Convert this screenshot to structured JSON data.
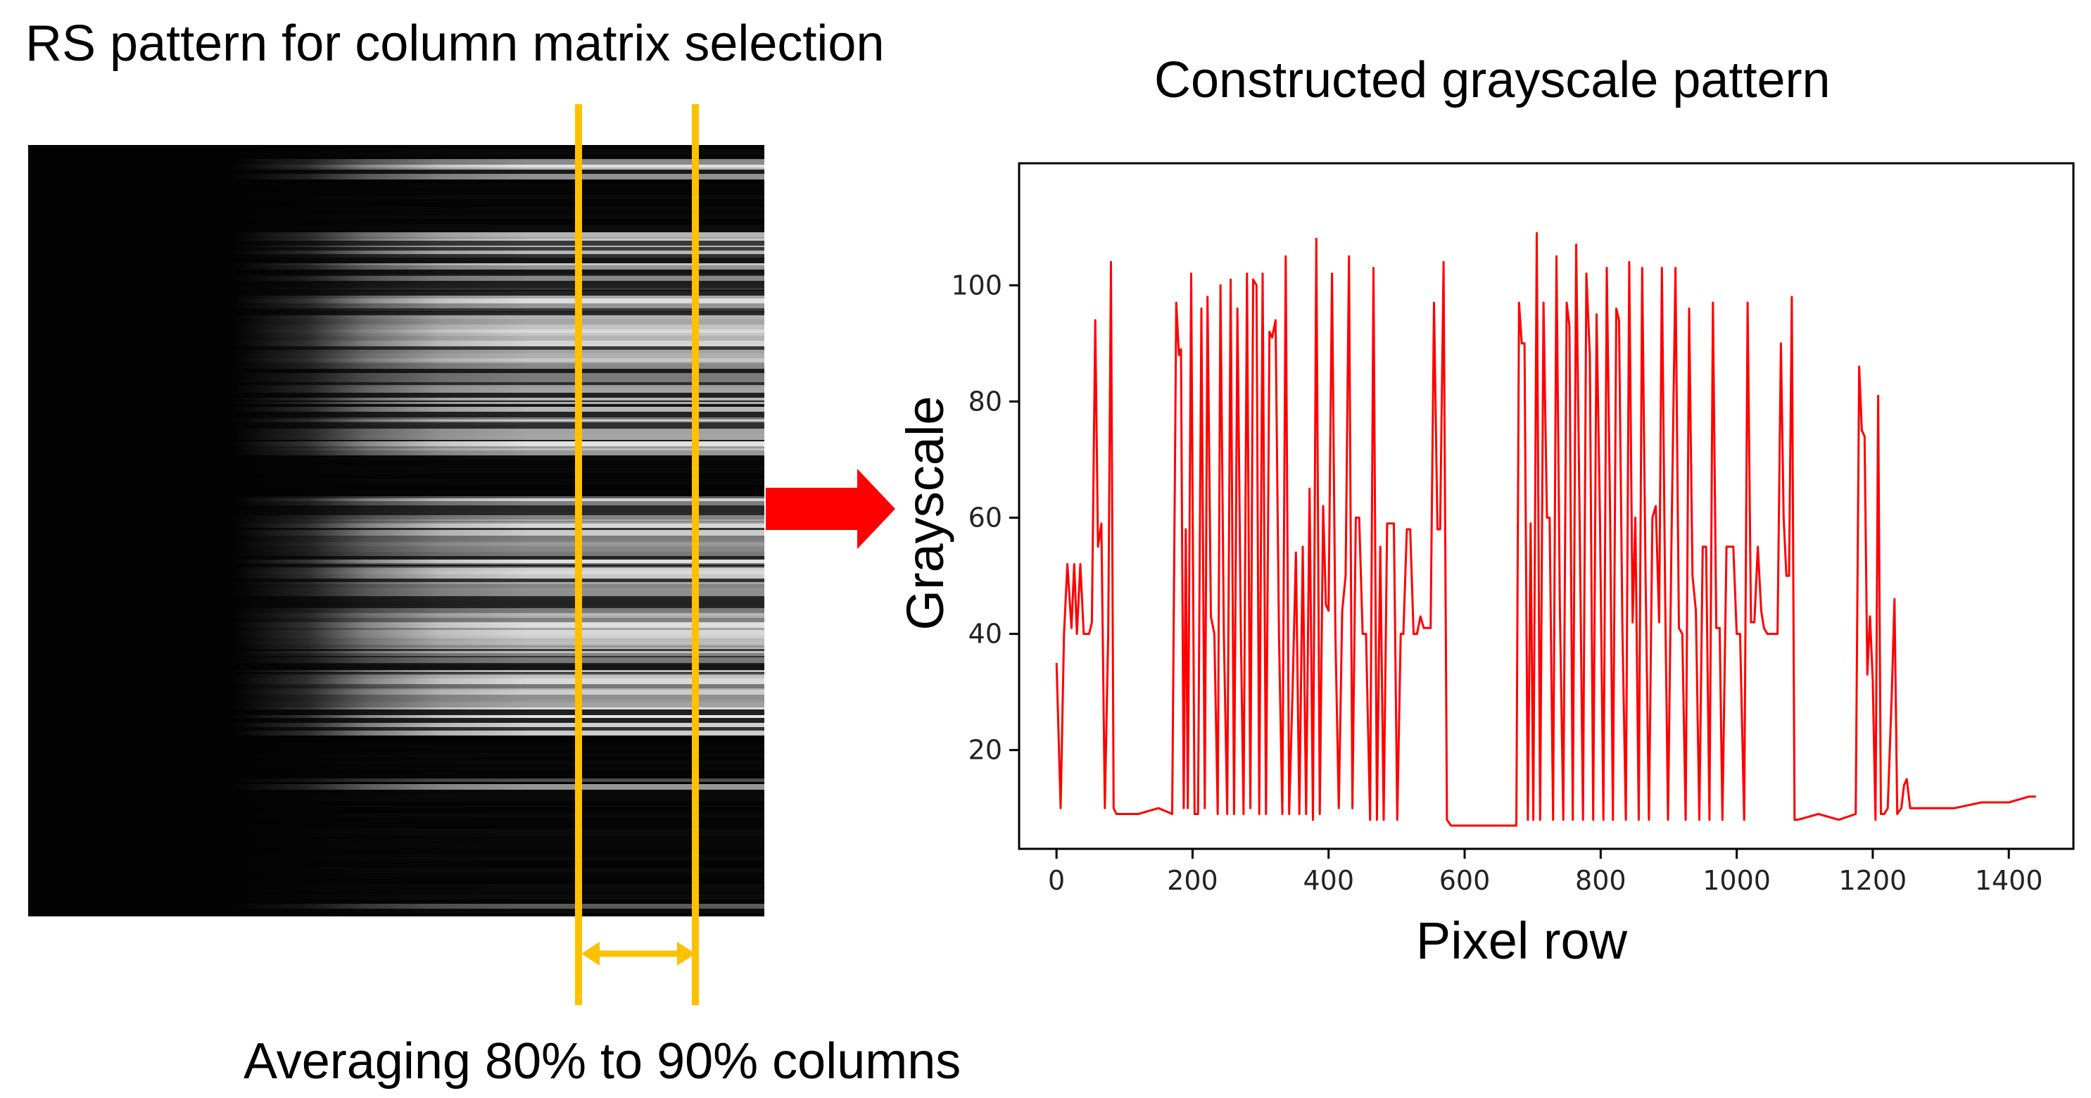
{
  "left_panel": {
    "title": "RS pattern for column matrix selection",
    "caption": "Averaging 80% to 90% columns",
    "selection_range_percent": [
      80,
      90
    ]
  },
  "colors": {
    "signal_line": "#ff0000",
    "selection_marker": "#ffc000",
    "arrow": "#ff0000",
    "rs_background": "#030303"
  },
  "icons": {
    "arrow": "right-arrow-icon",
    "range": "double-headed-arrow-icon"
  },
  "chart_data": {
    "type": "line",
    "title": "Constructed grayscale pattern",
    "xlabel": "Pixel row",
    "ylabel": "Grayscale",
    "xlim": [
      -55,
      1495
    ],
    "ylim": [
      3,
      121
    ],
    "xticks": [
      0,
      200,
      400,
      600,
      800,
      1000,
      1200,
      1400
    ],
    "yticks": [
      20,
      40,
      60,
      80,
      100
    ],
    "grid": false,
    "legend": "none",
    "series": [
      {
        "name": "grayscale",
        "color": "#ff0000",
        "points": [
          [
            0,
            35
          ],
          [
            6,
            10
          ],
          [
            11,
            40
          ],
          [
            16,
            52
          ],
          [
            22,
            41
          ],
          [
            26,
            52
          ],
          [
            30,
            40
          ],
          [
            35,
            52
          ],
          [
            40,
            40
          ],
          [
            48,
            40
          ],
          [
            52,
            42
          ],
          [
            57,
            94
          ],
          [
            61,
            55
          ],
          [
            66,
            59
          ],
          [
            71,
            10
          ],
          [
            76,
            40
          ],
          [
            80,
            104
          ],
          [
            84,
            10
          ],
          [
            88,
            9
          ],
          [
            120,
            9
          ],
          [
            150,
            10
          ],
          [
            170,
            9
          ],
          [
            176,
            97
          ],
          [
            180,
            88
          ],
          [
            183,
            89
          ],
          [
            187,
            10
          ],
          [
            190,
            58
          ],
          [
            193,
            10
          ],
          [
            198,
            102
          ],
          [
            203,
            9
          ],
          [
            208,
            9
          ],
          [
            213,
            96
          ],
          [
            218,
            10
          ],
          [
            222,
            98
          ],
          [
            227,
            43
          ],
          [
            232,
            40
          ],
          [
            237,
            9
          ],
          [
            241,
            100
          ],
          [
            246,
            40
          ],
          [
            251,
            9
          ],
          [
            256,
            101
          ],
          [
            261,
            9
          ],
          [
            266,
            96
          ],
          [
            271,
            40
          ],
          [
            275,
            9
          ],
          [
            280,
            102
          ],
          [
            285,
            10
          ],
          [
            289,
            101
          ],
          [
            294,
            100
          ],
          [
            298,
            9
          ],
          [
            303,
            102
          ],
          [
            308,
            9
          ],
          [
            313,
            92
          ],
          [
            317,
            91
          ],
          [
            322,
            94
          ],
          [
            327,
            40
          ],
          [
            332,
            9
          ],
          [
            337,
            105
          ],
          [
            342,
            9
          ],
          [
            347,
            30
          ],
          [
            352,
            54
          ],
          [
            357,
            9
          ],
          [
            362,
            55
          ],
          [
            367,
            9
          ],
          [
            372,
            65
          ],
          [
            377,
            8
          ],
          [
            382,
            108
          ],
          [
            387,
            9
          ],
          [
            392,
            62
          ],
          [
            396,
            45
          ],
          [
            400,
            44
          ],
          [
            405,
            102
          ],
          [
            410,
            40
          ],
          [
            415,
            10
          ],
          [
            420,
            44
          ],
          [
            425,
            50
          ],
          [
            430,
            105
          ],
          [
            435,
            10
          ],
          [
            440,
            60
          ],
          [
            445,
            60
          ],
          [
            450,
            40
          ],
          [
            455,
            40
          ],
          [
            461,
            8
          ],
          [
            466,
            103
          ],
          [
            471,
            8
          ],
          [
            476,
            55
          ],
          [
            481,
            8
          ],
          [
            486,
            59
          ],
          [
            491,
            59
          ],
          [
            496,
            59
          ],
          [
            501,
            8
          ],
          [
            506,
            40
          ],
          [
            510,
            40
          ],
          [
            515,
            58
          ],
          [
            520,
            58
          ],
          [
            525,
            40
          ],
          [
            530,
            40
          ],
          [
            535,
            43
          ],
          [
            540,
            41
          ],
          [
            545,
            41
          ],
          [
            550,
            41
          ],
          [
            555,
            97
          ],
          [
            560,
            58
          ],
          [
            564,
            58
          ],
          [
            569,
            104
          ],
          [
            574,
            8
          ],
          [
            580,
            7
          ],
          [
            600,
            7
          ],
          [
            640,
            7
          ],
          [
            676,
            7
          ],
          [
            680,
            97
          ],
          [
            684,
            90
          ],
          [
            688,
            90
          ],
          [
            693,
            8
          ],
          [
            697,
            59
          ],
          [
            701,
            8
          ],
          [
            706,
            109
          ],
          [
            711,
            8
          ],
          [
            716,
            97
          ],
          [
            721,
            60
          ],
          [
            725,
            60
          ],
          [
            730,
            8
          ],
          [
            735,
            105
          ],
          [
            740,
            45
          ],
          [
            745,
            8
          ],
          [
            750,
            97
          ],
          [
            754,
            93
          ],
          [
            759,
            8
          ],
          [
            764,
            107
          ],
          [
            769,
            60
          ],
          [
            774,
            8
          ],
          [
            779,
            102
          ],
          [
            784,
            88
          ],
          [
            789,
            8
          ],
          [
            794,
            95
          ],
          [
            799,
            60
          ],
          [
            804,
            8
          ],
          [
            809,
            103
          ],
          [
            814,
            60
          ],
          [
            818,
            8
          ],
          [
            823,
            96
          ],
          [
            827,
            94
          ],
          [
            832,
            41
          ],
          [
            837,
            8
          ],
          [
            842,
            104
          ],
          [
            847,
            42
          ],
          [
            851,
            60
          ],
          [
            856,
            8
          ],
          [
            861,
            103
          ],
          [
            866,
            50
          ],
          [
            871,
            8
          ],
          [
            876,
            60
          ],
          [
            881,
            62
          ],
          [
            886,
            42
          ],
          [
            890,
            103
          ],
          [
            895,
            45
          ],
          [
            899,
            8
          ],
          [
            904,
            55
          ],
          [
            910,
            103
          ],
          [
            915,
            41
          ],
          [
            920,
            40
          ],
          [
            925,
            8
          ],
          [
            930,
            96
          ],
          [
            935,
            50
          ],
          [
            940,
            44
          ],
          [
            945,
            8
          ],
          [
            950,
            55
          ],
          [
            955,
            55
          ],
          [
            960,
            8
          ],
          [
            965,
            97
          ],
          [
            970,
            41
          ],
          [
            975,
            41
          ],
          [
            979,
            8
          ],
          [
            985,
            55
          ],
          [
            990,
            55
          ],
          [
            995,
            55
          ],
          [
            1000,
            40
          ],
          [
            1005,
            40
          ],
          [
            1011,
            8
          ],
          [
            1016,
            97
          ],
          [
            1021,
            42
          ],
          [
            1026,
            42
          ],
          [
            1031,
            55
          ],
          [
            1036,
            44
          ],
          [
            1040,
            41
          ],
          [
            1045,
            40
          ],
          [
            1050,
            40
          ],
          [
            1055,
            40
          ],
          [
            1060,
            40
          ],
          [
            1065,
            90
          ],
          [
            1069,
            60
          ],
          [
            1073,
            50
          ],
          [
            1077,
            50
          ],
          [
            1081,
            98
          ],
          [
            1085,
            8
          ],
          [
            1090,
            8
          ],
          [
            1120,
            9
          ],
          [
            1150,
            8
          ],
          [
            1175,
            9
          ],
          [
            1180,
            86
          ],
          [
            1184,
            75
          ],
          [
            1188,
            74
          ],
          [
            1192,
            33
          ],
          [
            1196,
            43
          ],
          [
            1200,
            32
          ],
          [
            1204,
            8
          ],
          [
            1208,
            81
          ],
          [
            1212,
            9
          ],
          [
            1217,
            9
          ],
          [
            1222,
            10
          ],
          [
            1228,
            30
          ],
          [
            1232,
            46
          ],
          [
            1236,
            9
          ],
          [
            1242,
            10
          ],
          [
            1246,
            14
          ],
          [
            1250,
            15
          ],
          [
            1255,
            10
          ],
          [
            1280,
            10
          ],
          [
            1320,
            10
          ],
          [
            1360,
            11
          ],
          [
            1400,
            11
          ],
          [
            1430,
            12
          ],
          [
            1440,
            12
          ]
        ]
      }
    ]
  }
}
